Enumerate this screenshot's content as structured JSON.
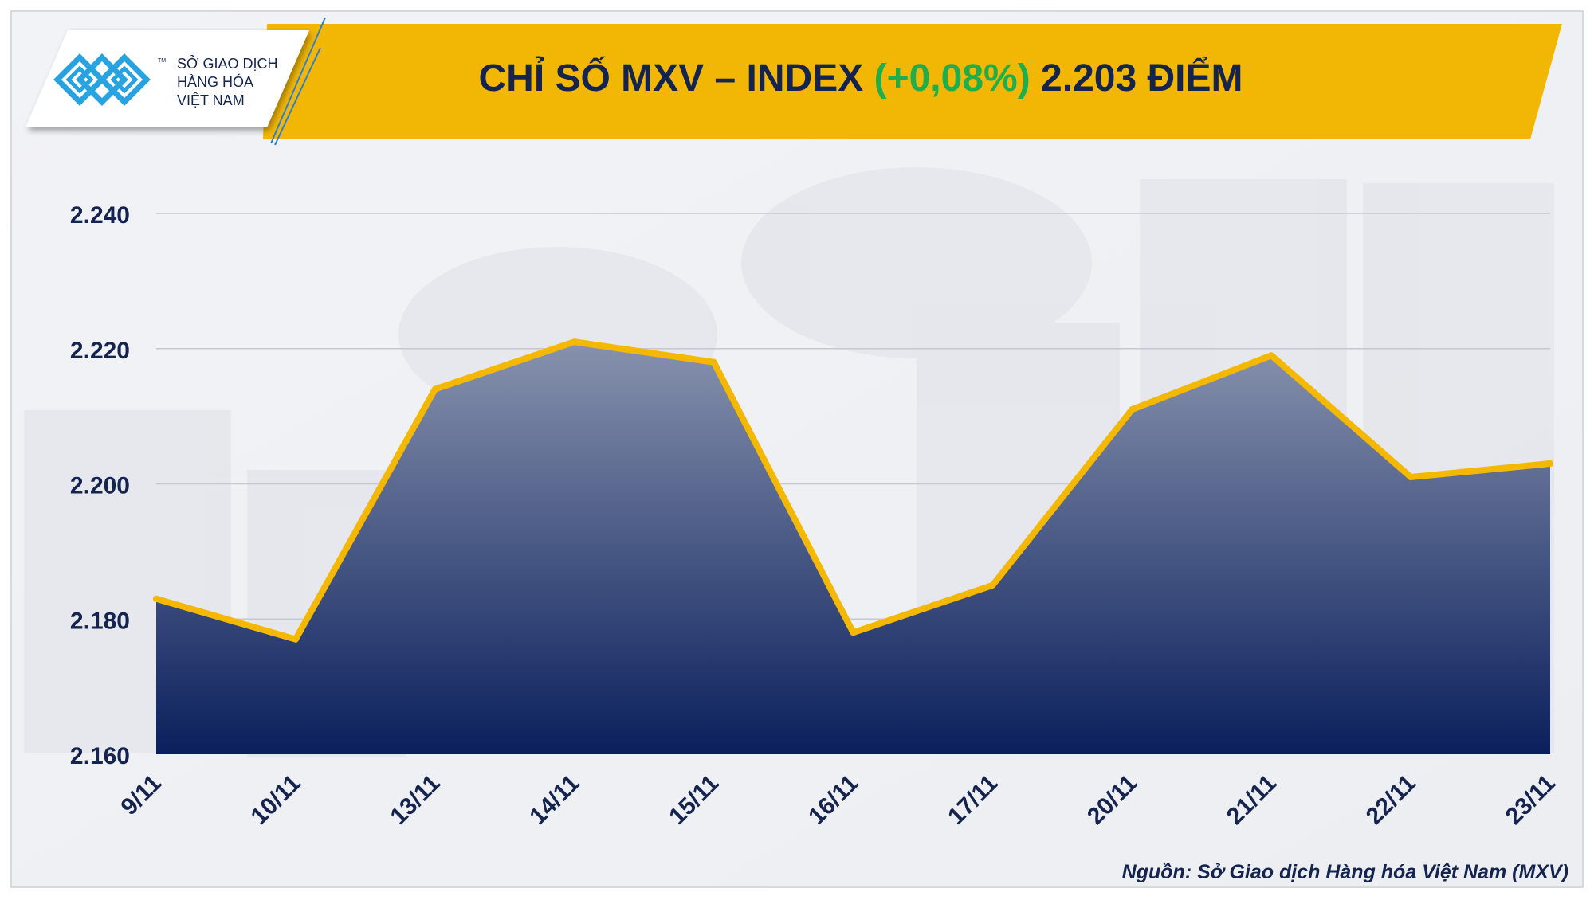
{
  "brand": {
    "logo_text_line1": "SỞ GIAO DỊCH",
    "logo_text_line2": "HÀNG HÓA",
    "logo_text_line3": "VIỆT NAM",
    "tm": "TM"
  },
  "header": {
    "title_main": "CHỈ SỐ MXV – INDEX",
    "title_change": "(+0,08%)",
    "title_points": "2.203 ĐIỂM"
  },
  "colors": {
    "banner": "#F2B705",
    "title_text": "#14244F",
    "change_green": "#1FAE4B",
    "line": "#F5B800",
    "area_top": "#8792AD",
    "area_bottom": "#0A1F5C",
    "gridline": "#C4C8D0",
    "axis_text": "#14244F"
  },
  "chart_data": {
    "type": "area",
    "title": "CHỈ SỐ MXV – INDEX (+0,08%) 2.203 ĐIỂM",
    "xlabel": "",
    "ylabel": "",
    "categories": [
      "9/11",
      "10/11",
      "13/11",
      "14/11",
      "15/11",
      "16/11",
      "17/11",
      "20/11",
      "21/11",
      "22/11",
      "23/11"
    ],
    "series": [
      {
        "name": "MXV-Index",
        "values": [
          2183,
          2177,
          2214,
          2221,
          2218,
          2178,
          2185,
          2211,
          2219,
          2201,
          2203
        ]
      }
    ],
    "ylim": [
      2160,
      2240
    ],
    "yticks": [
      2160,
      2180,
      2200,
      2220,
      2240
    ],
    "ytick_labels": [
      "2.160",
      "2.180",
      "2.200",
      "2.220",
      "2.240"
    ],
    "grid": true,
    "legend": "none"
  },
  "footer": {
    "source": "Nguồn: Sở Giao dịch Hàng hóa Việt Nam (MXV)"
  }
}
